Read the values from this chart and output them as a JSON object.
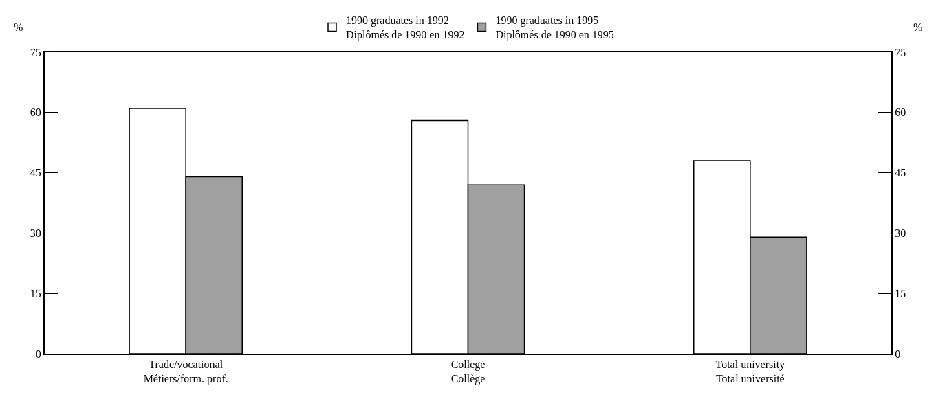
{
  "chart_data": {
    "type": "bar",
    "categories": [
      "Trade/vocational\nMétiers/form. prof.",
      "College\nCollège",
      "Total university\nTotal université"
    ],
    "series": [
      {
        "name": "1990 graduates in 1992\nDiplômés de 1990 en 1992",
        "color": "#ffffff",
        "values": [
          61,
          58,
          48
        ]
      },
      {
        "name": "1990 graduates in 1995\nDiplômés de 1990 en 1995",
        "color": "#a0a0a0",
        "values": [
          44,
          42,
          29
        ]
      }
    ],
    "ylabel": "%",
    "y2label": "%",
    "ylim": [
      0,
      75
    ],
    "yticks": [
      0,
      15,
      30,
      45,
      60,
      75
    ],
    "y2lim": [
      0,
      75
    ],
    "y2ticks": [
      0,
      15,
      30,
      45,
      60,
      75
    ],
    "legend": "top"
  }
}
